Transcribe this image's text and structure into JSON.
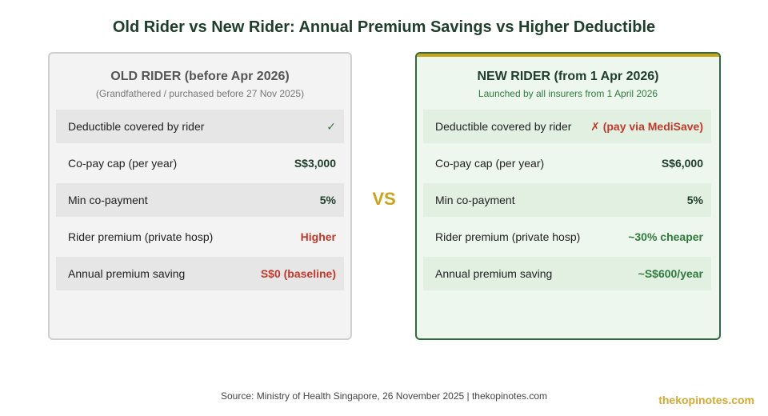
{
  "title": "Old Rider vs New Rider: Annual Premium Savings vs Higher Deductible",
  "old_rider": {
    "title": "OLD RIDER (before Apr 2026)",
    "subtitle": "(Grandfathered / purchased before 27 Nov 2025)",
    "rows": [
      {
        "label": "Deductible covered by rider",
        "value": "✓"
      },
      {
        "label": "Co-pay cap (per year)",
        "value": "S$3,000"
      },
      {
        "label": "Min co-payment",
        "value": "5%"
      },
      {
        "label": "Rider premium (private hosp)",
        "value": "Higher"
      },
      {
        "label": "Annual premium saving",
        "value": "S$0 (baseline)"
      }
    ]
  },
  "vs_label": "VS",
  "new_rider": {
    "title": "NEW RIDER (from 1 Apr 2026)",
    "subtitle": "Launched by all insurers from 1 April 2026",
    "rows": [
      {
        "label": "Deductible covered by rider",
        "value": "✗ (pay via MediSave)"
      },
      {
        "label": "Co-pay cap (per year)",
        "value": "S$6,000"
      },
      {
        "label": "Min co-payment",
        "value": "5%"
      },
      {
        "label": "Rider premium (private hosp)",
        "value": "~30% cheaper"
      },
      {
        "label": "Annual premium saving",
        "value": "~S$600/year"
      }
    ]
  },
  "source": "Source: Ministry of Health Singapore, 26 November 2025 | thekopinotes.com",
  "watermark": "thekopinotes.com",
  "colors": {
    "title": "#1f3d2b",
    "accent_gold": "#c9a318",
    "positive_green": "#2f7a3e",
    "negative_red": "#c0392b"
  }
}
